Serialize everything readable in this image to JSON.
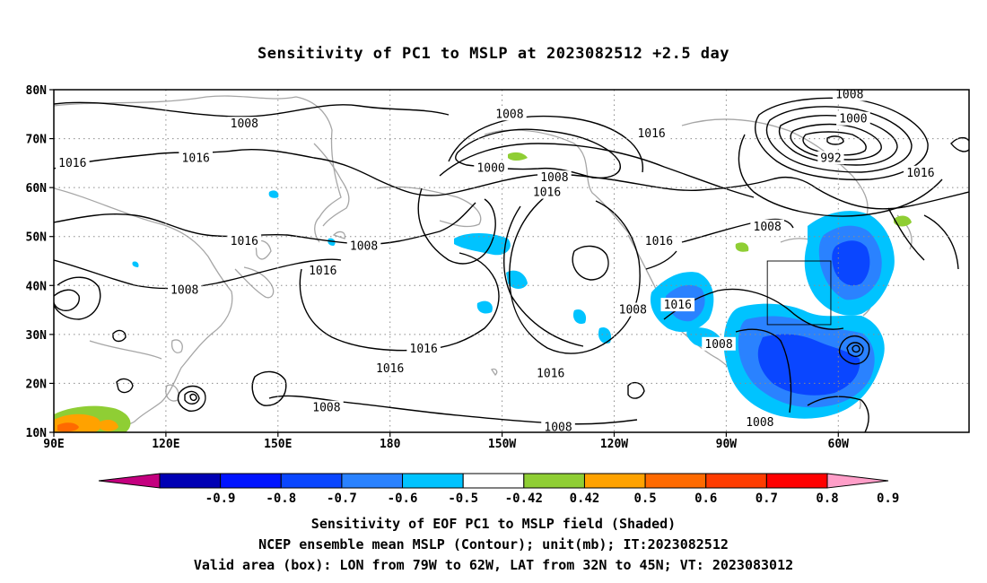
{
  "title": "Sensitivity of PC1 to MSLP at 2023082512 +2.5 day",
  "lat_labels": [
    "80N",
    "70N",
    "60N",
    "50N",
    "40N",
    "30N",
    "20N",
    "10N"
  ],
  "lon_labels": [
    "90E",
    "120E",
    "150E",
    "180",
    "150W",
    "120W",
    "90W",
    "60W"
  ],
  "contour_labels": [
    {
      "text": "1008",
      "lon": 141,
      "lat": 73
    },
    {
      "text": "1016",
      "lon": 95,
      "lat": 65
    },
    {
      "text": "1016",
      "lon": 128,
      "lat": 66
    },
    {
      "text": "1016",
      "lon": 141,
      "lat": 49
    },
    {
      "text": "1016",
      "lon": 162,
      "lat": 43
    },
    {
      "text": "1008",
      "lon": 125,
      "lat": 39
    },
    {
      "text": "1008",
      "lon": 212,
      "lat": 75
    },
    {
      "text": "1000",
      "lon": 207,
      "lat": 64
    },
    {
      "text": "1008",
      "lon": 224,
      "lat": 62
    },
    {
      "text": "1016",
      "lon": 222,
      "lat": 59
    },
    {
      "text": "1008",
      "lon": 173,
      "lat": 48
    },
    {
      "text": "1016",
      "lon": 189,
      "lat": 27
    },
    {
      "text": "1016",
      "lon": 180,
      "lat": 23
    },
    {
      "text": "1016",
      "lon": 223,
      "lat": 22
    },
    {
      "text": "1008",
      "lon": 163,
      "lat": 15
    },
    {
      "text": "1008",
      "lon": 225,
      "lat": 11
    },
    {
      "text": "1016",
      "lon": 250,
      "lat": 71
    },
    {
      "text": "1016",
      "lon": 252,
      "lat": 49
    },
    {
      "text": "1016",
      "lon": 257,
      "lat": 36
    },
    {
      "text": "1008",
      "lon": 245,
      "lat": 35
    },
    {
      "text": "1008",
      "lon": 268,
      "lat": 28
    },
    {
      "text": "1008",
      "lon": 281,
      "lat": 52
    },
    {
      "text": "1008",
      "lon": 303,
      "lat": 79
    },
    {
      "text": "1000",
      "lon": 304,
      "lat": 74
    },
    {
      "text": "992",
      "lon": 298,
      "lat": 66
    },
    {
      "text": "1016",
      "lon": 322,
      "lat": 63
    },
    {
      "text": "1008",
      "lon": 279,
      "lat": 12
    }
  ],
  "colorbar": {
    "labels": [
      "-0.9",
      "-0.8",
      "-0.7",
      "-0.6",
      "-0.5",
      "-0.42",
      "0.42",
      "0.5",
      "0.6",
      "0.7",
      "0.8",
      "0.9"
    ],
    "colors": [
      "#c4007f",
      "#0000b4",
      "#0014ff",
      "#0a46ff",
      "#2a82ff",
      "#00c3ff",
      "#ffffff",
      "#8fce34",
      "#ffa200",
      "#ff6a00",
      "#ff3c00",
      "#ff0000",
      "#ff9ec8"
    ]
  },
  "captions": [
    "Sensitivity of EOF PC1 to MSLP field (Shaded)",
    "NCEP ensemble mean MSLP (Contour); unit(mb); IT:2023082512",
    "Valid area (box): LON from 79W to 62W, LAT from 32N to 45N; VT: 2023083012"
  ],
  "valid_box": {
    "lon_west": -79,
    "lon_east": -62,
    "lat_south": 32,
    "lat_north": 45
  }
}
